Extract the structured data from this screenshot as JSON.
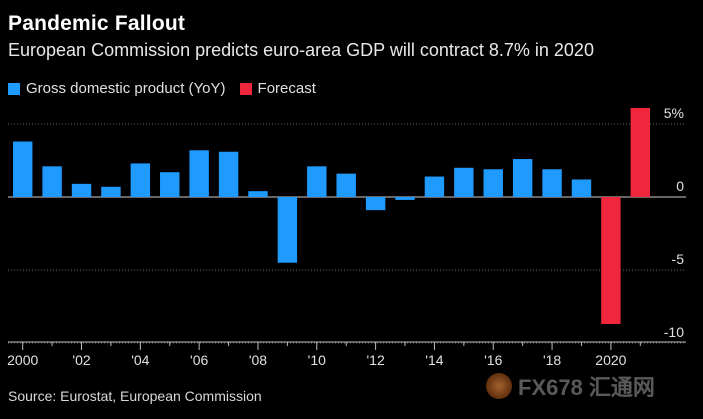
{
  "header": {
    "title": "Pandemic Fallout",
    "subtitle": "European Commission predicts euro-area GDP will contract 8.7% in 2020"
  },
  "legend": {
    "gdp_label": "Gross domestic product (YoY)",
    "forecast_label": "Forecast"
  },
  "colors": {
    "gdp": "#1f9bff",
    "forecast": "#f0263c",
    "gridline": "#666666",
    "zero_line": "#cccccc"
  },
  "footer": {
    "source": "Source: Eurostat, European Commission"
  },
  "watermark": {
    "text": "FX678 汇通网"
  },
  "chart_data": {
    "type": "bar",
    "title": "Pandemic Fallout",
    "subtitle": "European Commission predicts euro-area GDP will contract 8.7% in 2020",
    "xlabel": "",
    "ylabel": "",
    "ylim": [
      -10,
      6
    ],
    "y_ticks": [
      {
        "value": 5,
        "label": "5%"
      },
      {
        "value": 0,
        "label": "0"
      },
      {
        "value": -5,
        "label": "-5"
      },
      {
        "value": -10,
        "label": "-10"
      }
    ],
    "categories": [
      "2000",
      "2001",
      "2002",
      "2003",
      "2004",
      "2005",
      "2006",
      "2007",
      "2008",
      "2009",
      "2010",
      "2011",
      "2012",
      "2013",
      "2014",
      "2015",
      "2016",
      "2017",
      "2018",
      "2019",
      "2020",
      "2021"
    ],
    "x_tick_labels": [
      {
        "index": 0,
        "label": "2000"
      },
      {
        "index": 2,
        "label": "'02"
      },
      {
        "index": 4,
        "label": "'04"
      },
      {
        "index": 6,
        "label": "'06"
      },
      {
        "index": 8,
        "label": "'08"
      },
      {
        "index": 10,
        "label": "'10"
      },
      {
        "index": 12,
        "label": "'12"
      },
      {
        "index": 14,
        "label": "'14"
      },
      {
        "index": 16,
        "label": "'16"
      },
      {
        "index": 18,
        "label": "'18"
      },
      {
        "index": 20,
        "label": "2020"
      }
    ],
    "series": [
      {
        "name": "Gross domestic product (YoY)",
        "color_key": "gdp",
        "values": [
          3.8,
          2.1,
          0.9,
          0.7,
          2.3,
          1.7,
          3.2,
          3.1,
          0.4,
          -4.5,
          2.1,
          1.6,
          -0.9,
          -0.2,
          1.4,
          2.0,
          1.9,
          2.6,
          1.9,
          1.2,
          null,
          null
        ]
      },
      {
        "name": "Forecast",
        "color_key": "forecast",
        "values": [
          null,
          null,
          null,
          null,
          null,
          null,
          null,
          null,
          null,
          null,
          null,
          null,
          null,
          null,
          null,
          null,
          null,
          null,
          null,
          null,
          -8.7,
          6.1
        ]
      }
    ]
  }
}
